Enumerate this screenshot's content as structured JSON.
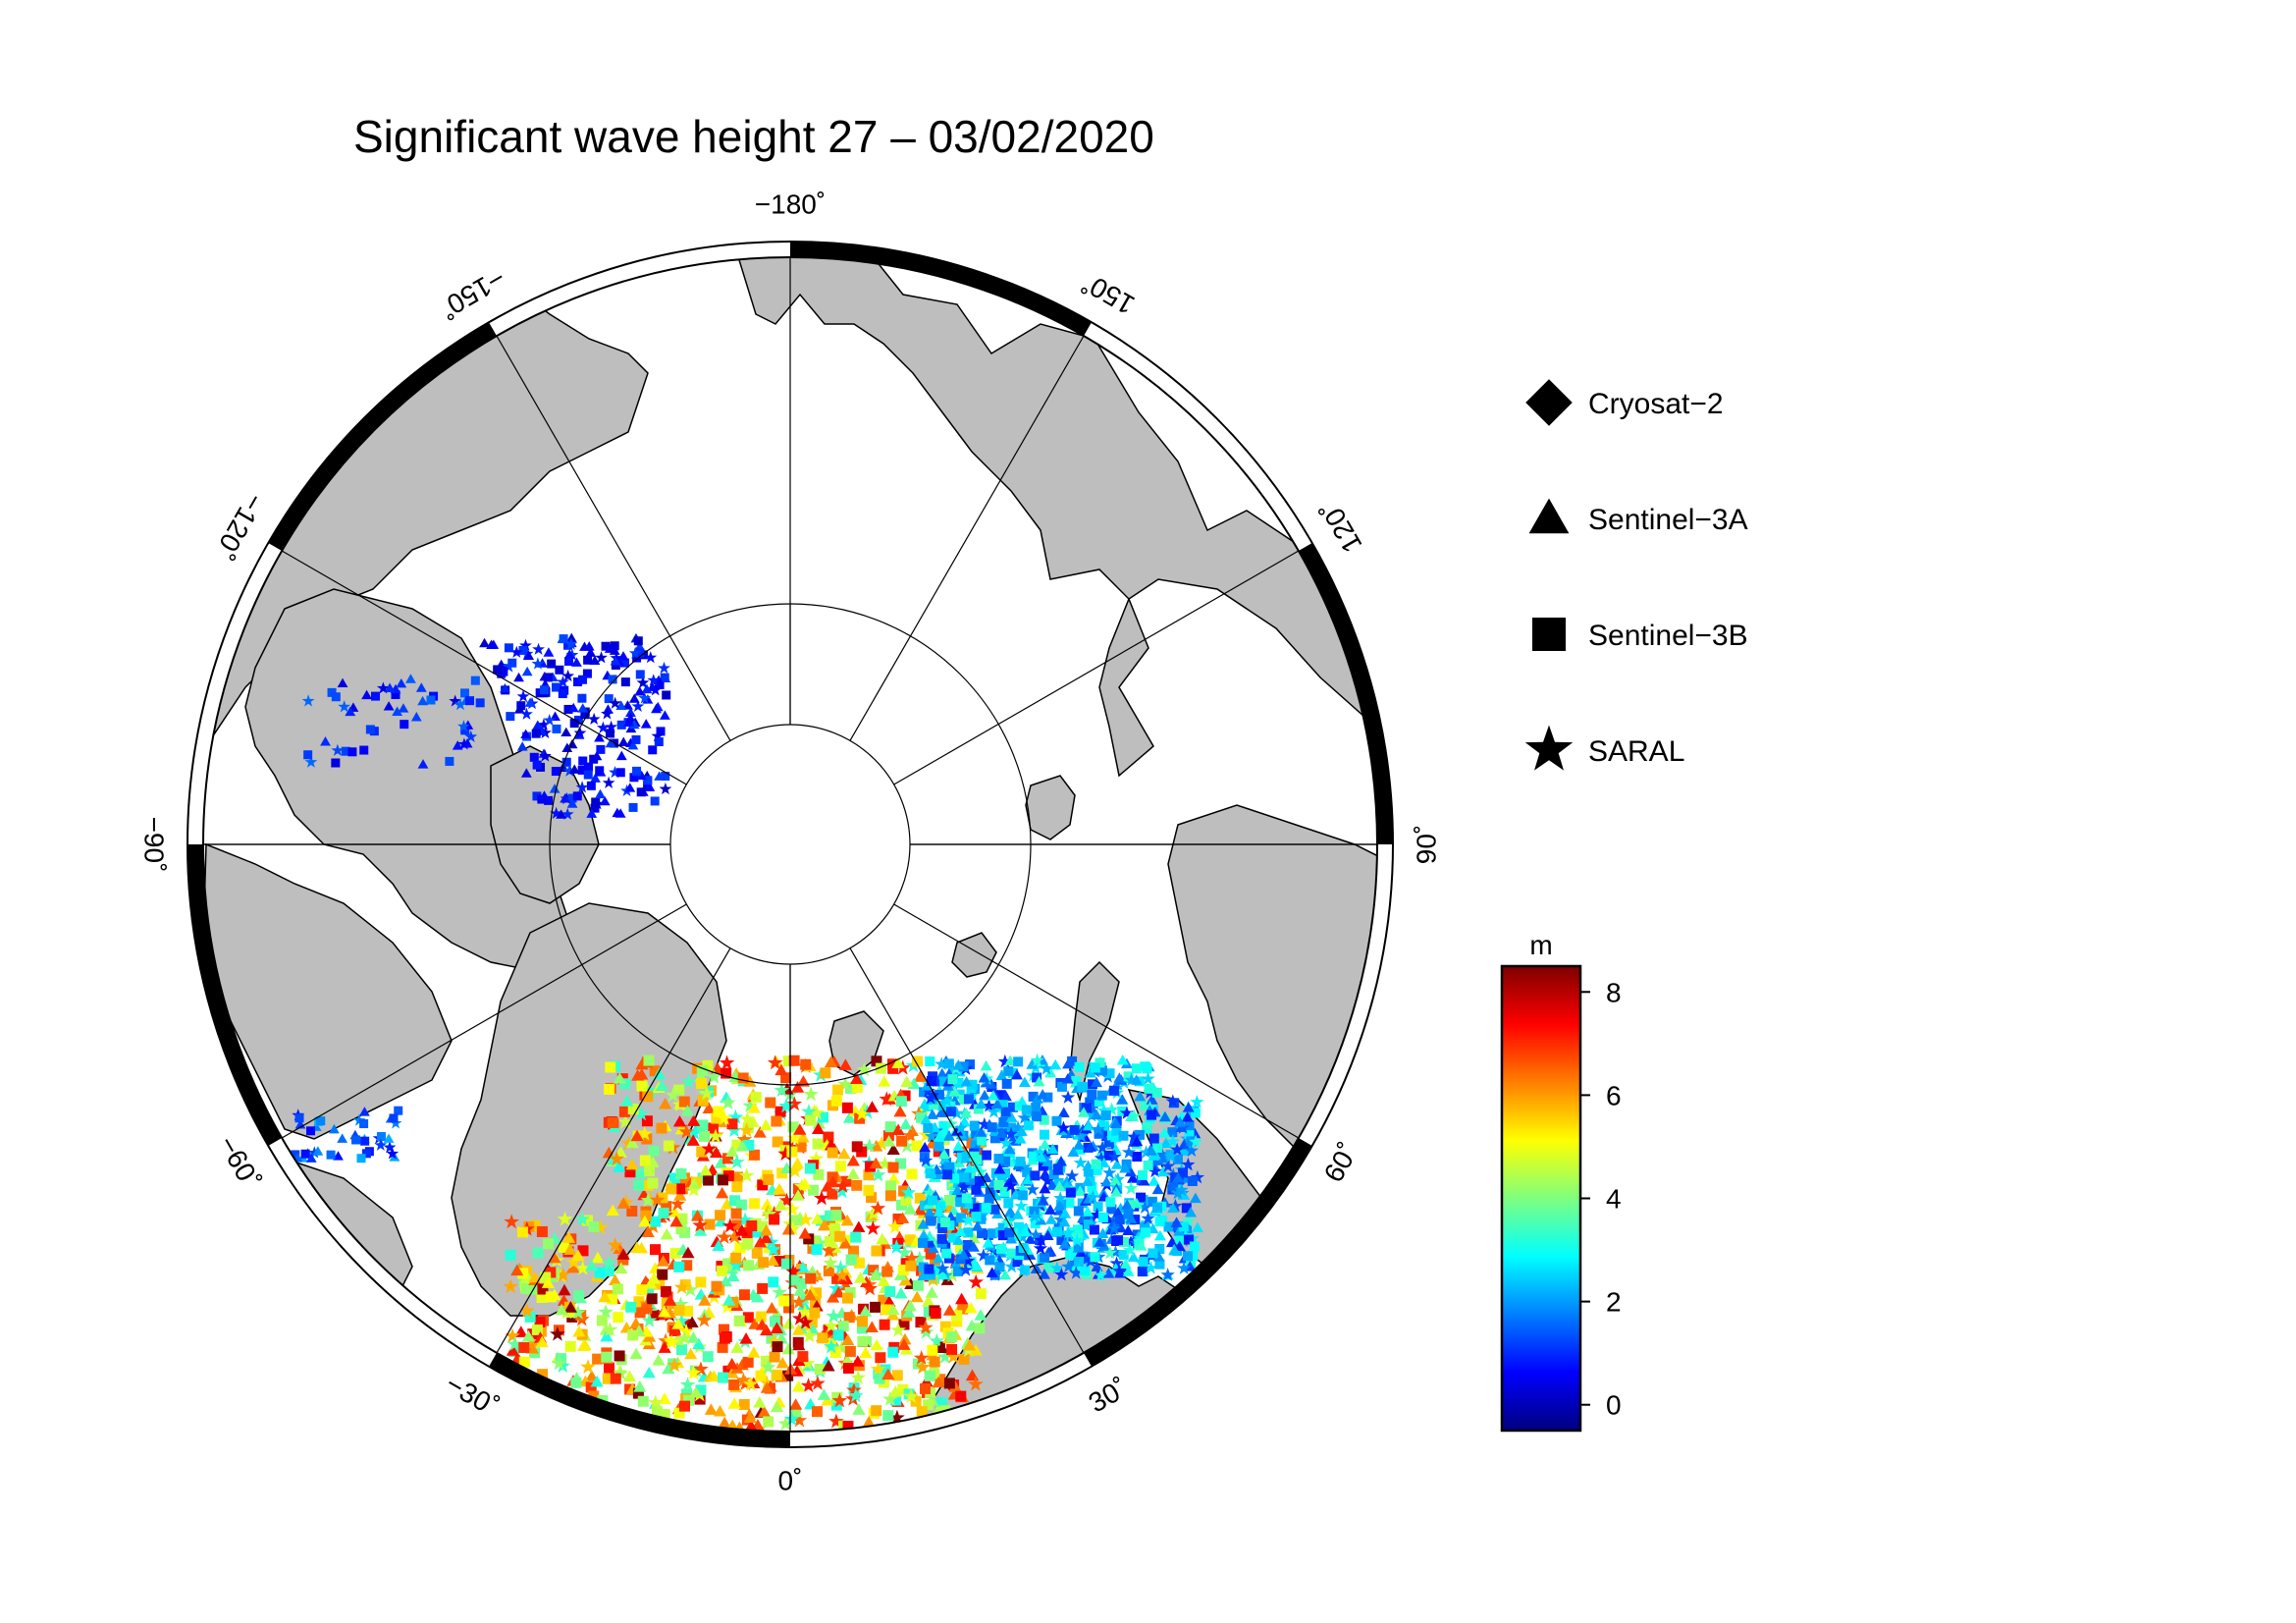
{
  "title": "Significant wave height 27 – 03/02/2020",
  "longitude_labels": [
    {
      "lon": -180,
      "text": "−180˚"
    },
    {
      "lon": -150,
      "text": "−150˚"
    },
    {
      "lon": -120,
      "text": "−120˚"
    },
    {
      "lon": -90,
      "text": "−90˚"
    },
    {
      "lon": -60,
      "text": "−60˚"
    },
    {
      "lon": -30,
      "text": "−30˚"
    },
    {
      "lon": 0,
      "text": "0˚"
    },
    {
      "lon": 30,
      "text": "30˚"
    },
    {
      "lon": 60,
      "text": "60˚"
    },
    {
      "lon": 90,
      "text": "90˚"
    },
    {
      "lon": 120,
      "text": "120˚"
    },
    {
      "lon": 150,
      "text": "150˚"
    }
  ],
  "legend": [
    {
      "symbol": "diamond",
      "label": "Cryosat−2"
    },
    {
      "symbol": "triangle",
      "label": "Sentinel−3A"
    },
    {
      "symbol": "square",
      "label": "Sentinel−3B"
    },
    {
      "symbol": "star",
      "label": "SARAL"
    }
  ],
  "colorbar": {
    "unit": "m",
    "min": -0.5,
    "max": 8.5,
    "ticks": [
      {
        "value": 0,
        "text": "0"
      },
      {
        "value": 2,
        "text": "2"
      },
      {
        "value": 4,
        "text": "4"
      },
      {
        "value": 6,
        "text": "6"
      },
      {
        "value": 8,
        "text": "8"
      }
    ],
    "colormap": "jet",
    "colors": [
      "#00007f",
      "#0000ff",
      "#007fff",
      "#00ffff",
      "#7fff7f",
      "#ffff00",
      "#ff7f00",
      "#ff0000",
      "#7f0000"
    ]
  },
  "colors": {
    "land": "#bebebe",
    "ice": "#ffffff",
    "frame": "#000000",
    "graticule": "#000000"
  }
}
